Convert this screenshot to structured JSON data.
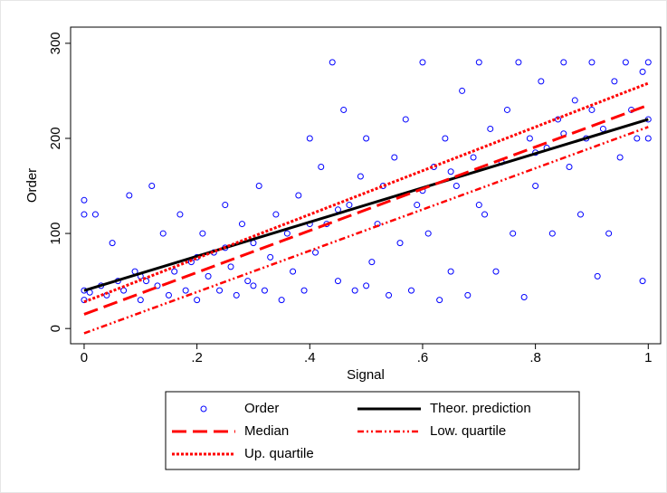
{
  "chart_data": {
    "type": "scatter",
    "x_label": "Signal",
    "y_label": "Order",
    "xlim": [
      -0.024,
      1.022
    ],
    "ylim": [
      -16,
      317
    ],
    "xticks": [
      0,
      {
        "value": 0.2,
        "label": ".2"
      },
      {
        "value": 0.4,
        "label": ".4"
      },
      {
        "value": 0.6,
        "label": ".6"
      },
      {
        "value": 0.8,
        "label": ".8"
      },
      1
    ],
    "yticks": [
      0,
      100,
      200,
      300
    ],
    "series": [
      {
        "name": "Order",
        "kind": "scatter",
        "color": "#0000ff",
        "x": [
          0,
          0,
          0,
          0,
          0.01,
          0.02,
          0.03,
          0.04,
          0.05,
          0.06,
          0.07,
          0.08,
          0.09,
          0.1,
          0.11,
          0.12,
          0.13,
          0.14,
          0.15,
          0.16,
          0.17,
          0.18,
          0.19,
          0.2,
          0.21,
          0.22,
          0.23,
          0.24,
          0.25,
          0.26,
          0.27,
          0.28,
          0.29,
          0.3,
          0.31,
          0.32,
          0.33,
          0.34,
          0.35,
          0.36,
          0.37,
          0.38,
          0.39,
          0.4,
          0.41,
          0.42,
          0.43,
          0.44,
          0.45,
          0.46,
          0.47,
          0.48,
          0.49,
          0.5,
          0.51,
          0.52,
          0.53,
          0.54,
          0.55,
          0.56,
          0.57,
          0.58,
          0.59,
          0.6,
          0.61,
          0.62,
          0.63,
          0.64,
          0.65,
          0.66,
          0.67,
          0.68,
          0.69,
          0.7,
          0.71,
          0.72,
          0.73,
          0.74,
          0.75,
          0.76,
          0.77,
          0.78,
          0.79,
          0.8,
          0.81,
          0.82,
          0.83,
          0.84,
          0.85,
          0.86,
          0.87,
          0.88,
          0.89,
          0.9,
          0.91,
          0.92,
          0.93,
          0.94,
          0.95,
          0.96,
          0.97,
          0.98,
          0.99,
          1,
          1,
          1,
          0.3,
          0.5,
          0.7,
          0.9,
          0.1,
          0.2,
          0.4,
          0.6,
          0.8,
          0.25,
          0.45,
          0.65,
          0.85,
          0.99
        ],
        "values": [
          135,
          120,
          40,
          30,
          38,
          120,
          45,
          35,
          90,
          50,
          40,
          140,
          60,
          30,
          50,
          150,
          45,
          100,
          35,
          60,
          120,
          40,
          70,
          30,
          100,
          55,
          80,
          40,
          130,
          65,
          35,
          110,
          50,
          90,
          150,
          40,
          75,
          120,
          30,
          100,
          60,
          140,
          40,
          200,
          80,
          170,
          110,
          280,
          50,
          230,
          130,
          40,
          160,
          200,
          70,
          110,
          150,
          35,
          180,
          90,
          220,
          40,
          130,
          280,
          100,
          170,
          30,
          200,
          60,
          150,
          250,
          35,
          180,
          280,
          120,
          210,
          60,
          175,
          230,
          100,
          280,
          33,
          200,
          150,
          260,
          190,
          100,
          220,
          280,
          170,
          240,
          120,
          200,
          280,
          55,
          210,
          100,
          260,
          180,
          280,
          230,
          200,
          270,
          220,
          200,
          280,
          45,
          45,
          130,
          230,
          55,
          75,
          110,
          145,
          185,
          85,
          125,
          165,
          205,
          50
        ]
      },
      {
        "name": "Theor. prediction",
        "kind": "line",
        "style": "solid",
        "color": "#000000",
        "x": [
          0,
          1
        ],
        "values": [
          40,
          220
        ]
      },
      {
        "name": "Median",
        "kind": "line",
        "style": "dash",
        "color": "#ff0000",
        "x": [
          0,
          1
        ],
        "values": [
          15,
          235
        ]
      },
      {
        "name": "Low. quartile",
        "kind": "line",
        "style": "dashdot",
        "color": "#ff0000",
        "x": [
          0,
          1
        ],
        "values": [
          -5,
          212
        ]
      },
      {
        "name": "Up. quartile",
        "kind": "line",
        "style": "dot",
        "color": "#ff0000",
        "x": [
          0,
          1
        ],
        "values": [
          28,
          258
        ]
      }
    ]
  }
}
